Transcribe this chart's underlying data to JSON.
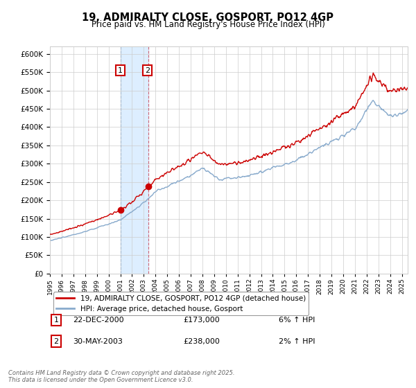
{
  "title": "19, ADMIRALTY CLOSE, GOSPORT, PO12 4GP",
  "subtitle": "Price paid vs. HM Land Registry's House Price Index (HPI)",
  "legend_property": "19, ADMIRALTY CLOSE, GOSPORT, PO12 4GP (detached house)",
  "legend_hpi": "HPI: Average price, detached house, Gosport",
  "sale1_label": "1",
  "sale1_date": "22-DEC-2000",
  "sale1_price": "£173,000",
  "sale1_hpi": "6% ↑ HPI",
  "sale1_year": 2001.0,
  "sale1_value": 173000,
  "sale2_label": "2",
  "sale2_date": "30-MAY-2003",
  "sale2_price": "£238,000",
  "sale2_hpi": "2% ↑ HPI",
  "sale2_year": 2003.42,
  "sale2_value": 238000,
  "ylim": [
    0,
    620000
  ],
  "xlim_start": 1995.0,
  "xlim_end": 2025.5,
  "property_color": "#cc0000",
  "hpi_color": "#88aacc",
  "shade_color": "#ddeeff",
  "vline1_color": "#aabbcc",
  "vline2_color": "#cc6677",
  "footnote": "Contains HM Land Registry data © Crown copyright and database right 2025.\nThis data is licensed under the Open Government Licence v3.0.",
  "background_color": "#ffffff",
  "grid_color": "#cccccc",
  "yticks": [
    0,
    50000,
    100000,
    150000,
    200000,
    250000,
    300000,
    350000,
    400000,
    450000,
    500000,
    550000,
    600000
  ]
}
